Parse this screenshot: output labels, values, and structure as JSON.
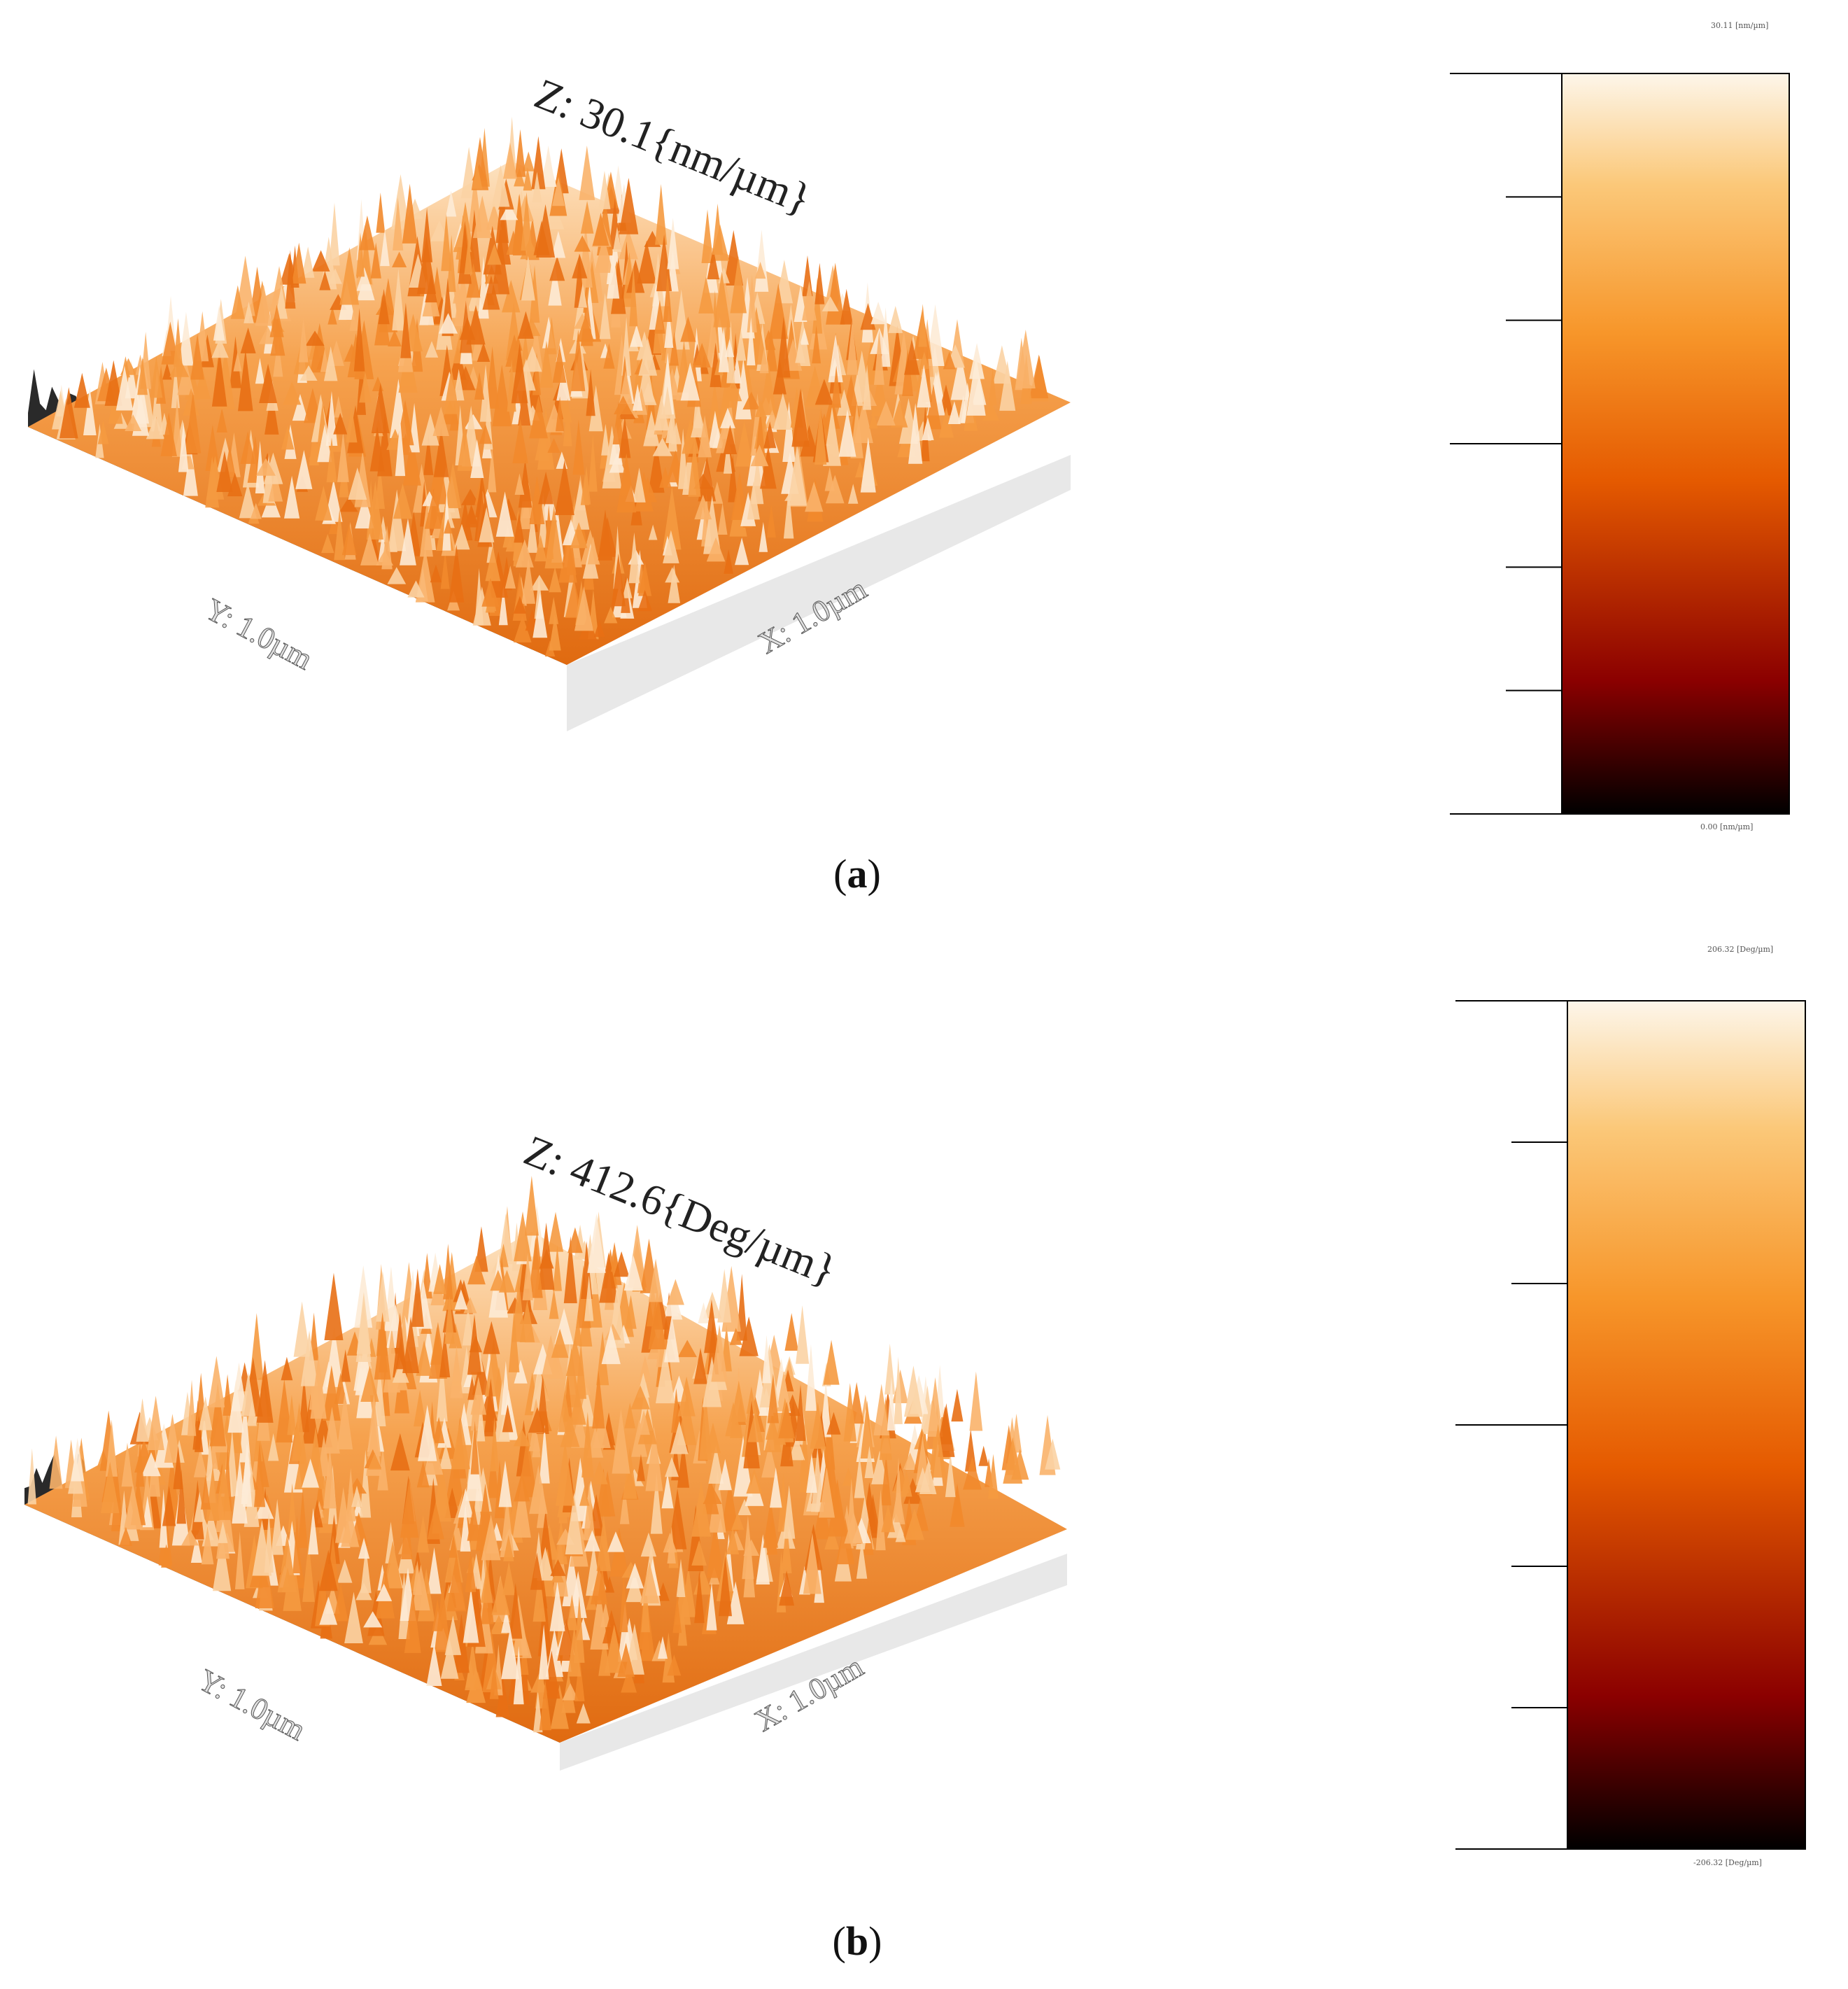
{
  "panels": [
    {
      "id": "a",
      "caption_letter": "a",
      "z_label": "Z: 30.1{nm/µm}",
      "x_label": "X: 1.0µm",
      "y_label": "Y: 1.0µm",
      "colorbar": {
        "max_label": "30.11 [nm/µm]",
        "min_label": "0.00 [nm/µm]",
        "major_ticks": 3,
        "minor_ticks": 4
      }
    },
    {
      "id": "b",
      "caption_letter": "b",
      "z_label": "Z: 412.6{Deg/µm}",
      "x_label": "X: 1.0µm",
      "y_label": "Y: 1.0µm",
      "colorbar": {
        "max_label": "206.32 [Deg/µm]",
        "min_label": "-206.32 [Deg/µm]",
        "major_ticks": 3,
        "minor_ticks": 4
      }
    }
  ],
  "colormap": [
    "#000000",
    "#8b0000",
    "#e55a00",
    "#f7962a",
    "#fbc879",
    "#fdf6ea"
  ],
  "colors": {
    "surface_shadow": "#2a2a2a",
    "side_face": "#e8e8e8"
  }
}
